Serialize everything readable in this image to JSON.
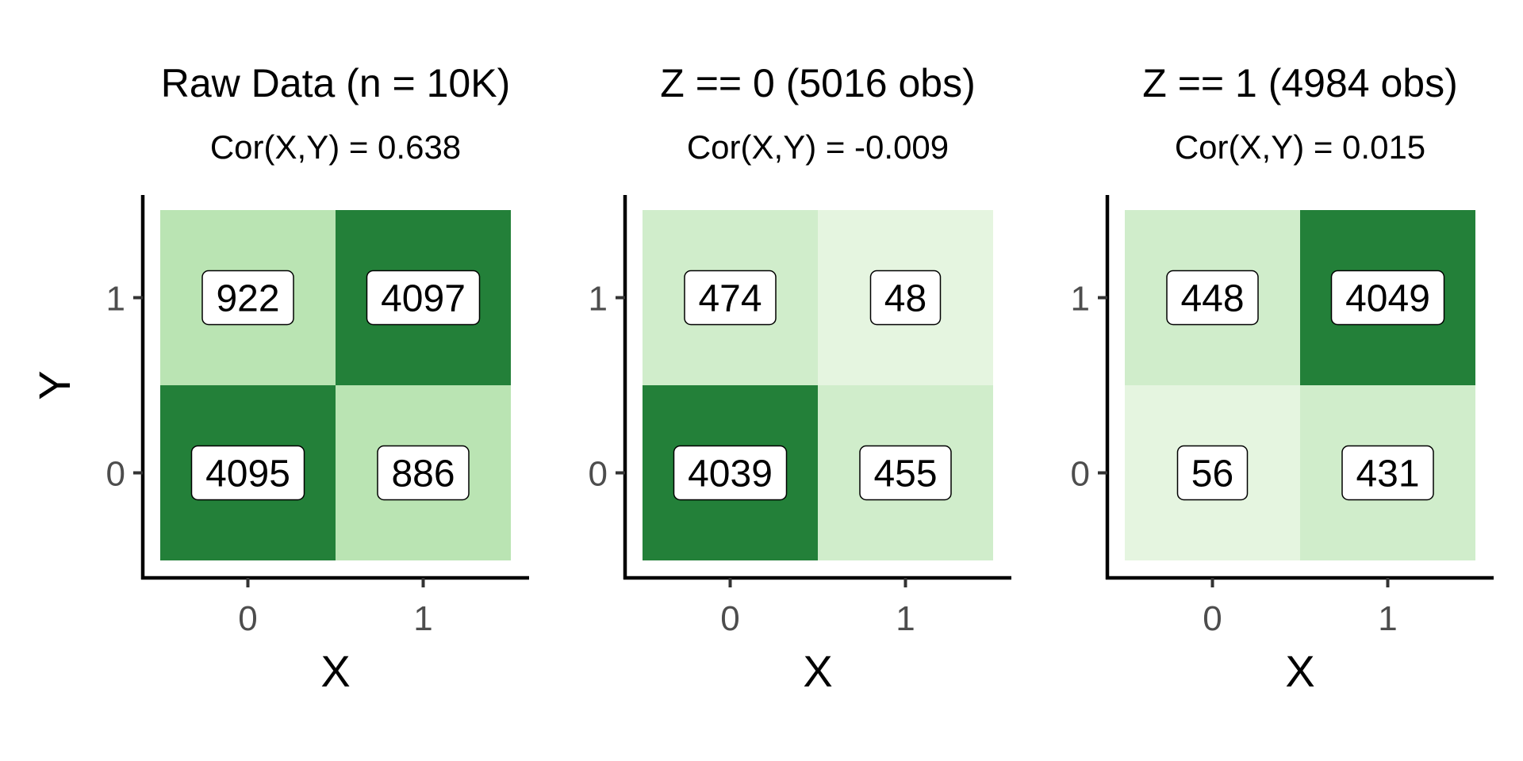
{
  "chart_data": [
    {
      "type": "heatmap",
      "title": "Raw Data (n = 10K)",
      "subtitle": "Cor(X,Y) = 0.638",
      "xlabel": "X",
      "ylabel": "Y",
      "x_categories": [
        "0",
        "1"
      ],
      "y_categories": [
        "0",
        "1"
      ],
      "cells": [
        {
          "x": "0",
          "y": "0",
          "value": 4095
        },
        {
          "x": "1",
          "y": "0",
          "value": 886
        },
        {
          "x": "0",
          "y": "1",
          "value": 922
        },
        {
          "x": "1",
          "y": "1",
          "value": 4097
        }
      ]
    },
    {
      "type": "heatmap",
      "title": "Z == 0 (5016 obs)",
      "subtitle": "Cor(X,Y) = -0.009",
      "xlabel": "X",
      "ylabel": "",
      "x_categories": [
        "0",
        "1"
      ],
      "y_categories": [
        "0",
        "1"
      ],
      "cells": [
        {
          "x": "0",
          "y": "0",
          "value": 4039
        },
        {
          "x": "1",
          "y": "0",
          "value": 455
        },
        {
          "x": "0",
          "y": "1",
          "value": 474
        },
        {
          "x": "1",
          "y": "1",
          "value": 48
        }
      ]
    },
    {
      "type": "heatmap",
      "title": "Z == 1 (4984 obs)",
      "subtitle": "Cor(X,Y) = 0.015",
      "xlabel": "X",
      "ylabel": "",
      "x_categories": [
        "0",
        "1"
      ],
      "y_categories": [
        "0",
        "1"
      ],
      "cells": [
        {
          "x": "0",
          "y": "0",
          "value": 56
        },
        {
          "x": "1",
          "y": "0",
          "value": 431
        },
        {
          "x": "0",
          "y": "1",
          "value": 448
        },
        {
          "x": "1",
          "y": "1",
          "value": 4049
        }
      ]
    }
  ],
  "colors": {
    "low": "#e5f5e0",
    "mid_low": "#d0edcb",
    "mid": "#bae4b3",
    "high": "#238039",
    "background": "#ffffff"
  }
}
